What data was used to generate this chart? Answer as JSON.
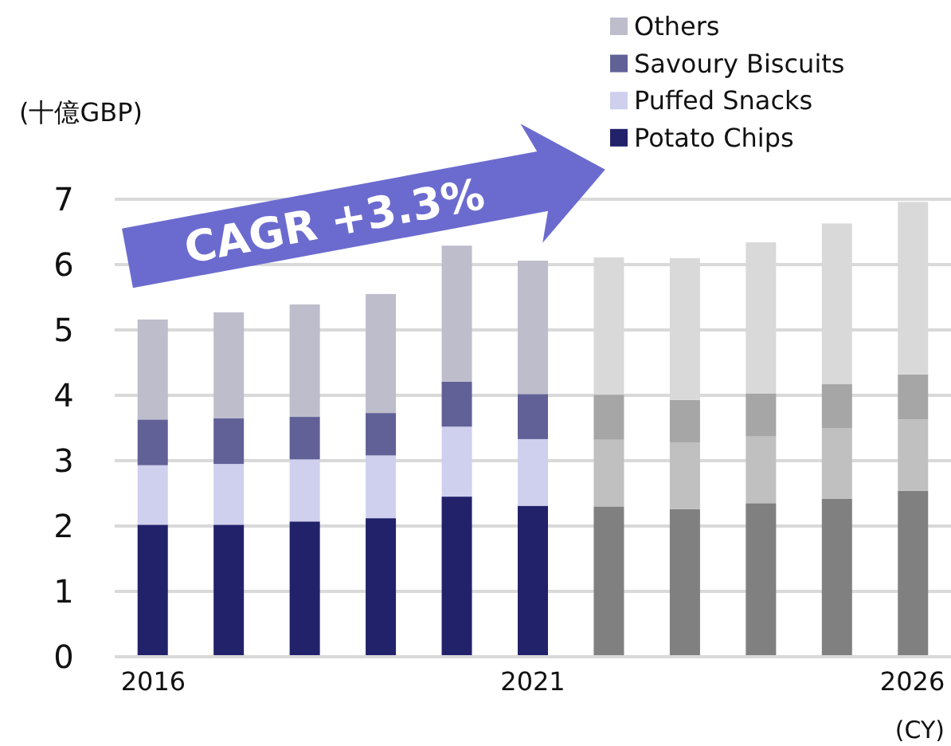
{
  "chart_data": {
    "type": "bar",
    "stacked": true,
    "ylabel": "(十億GBP)",
    "xlabel": "(CY)",
    "categories": [
      "2016",
      null,
      null,
      null,
      null,
      "2021",
      null,
      null,
      null,
      null,
      "2026"
    ],
    "series": [
      {
        "name": "Potato Chips",
        "color": "#22226b",
        "colors": [
          "#22226b",
          "#22226b",
          "#22226b",
          "#22226b",
          "#22226b",
          "#22226b",
          "#808080",
          "#808080",
          "#808080",
          "#808080",
          "#808080"
        ],
        "values": [
          2.02,
          2.02,
          2.07,
          2.12,
          2.45,
          2.31,
          2.3,
          2.26,
          2.35,
          2.42,
          2.54
        ]
      },
      {
        "name": "Puffed Snacks",
        "color": "#cfd0ee",
        "colors": [
          "#cfd0ee",
          "#cfd0ee",
          "#cfd0ee",
          "#cfd0ee",
          "#cfd0ee",
          "#cfd0ee",
          "#c0c0c0",
          "#c0c0c0",
          "#c0c0c0",
          "#c0c0c0",
          "#c0c0c0"
        ],
        "values": [
          0.91,
          0.93,
          0.95,
          0.96,
          1.07,
          1.02,
          1.02,
          1.02,
          1.02,
          1.08,
          1.09
        ]
      },
      {
        "name": "Savoury Biscuits",
        "color": "#616198",
        "colors": [
          "#616198",
          "#616198",
          "#616198",
          "#616198",
          "#616198",
          "#616198",
          "#a6a6a6",
          "#a6a6a6",
          "#a6a6a6",
          "#a6a6a6",
          "#a6a6a6"
        ],
        "values": [
          0.7,
          0.7,
          0.65,
          0.65,
          0.69,
          0.69,
          0.69,
          0.65,
          0.66,
          0.67,
          0.69
        ]
      },
      {
        "name": "Others",
        "color": "#bdbdcc",
        "colors": [
          "#bdbdcc",
          "#bdbdcc",
          "#bdbdcc",
          "#bdbdcc",
          "#bdbdcc",
          "#bdbdcc",
          "#d9d9d9",
          "#d9d9d9",
          "#d9d9d9",
          "#d9d9d9",
          "#d9d9d9"
        ],
        "values": [
          1.53,
          1.62,
          1.72,
          1.82,
          2.08,
          2.04,
          2.1,
          2.17,
          2.31,
          2.46,
          2.64
        ]
      }
    ],
    "ylim": [
      0,
      7
    ],
    "yticks": [
      0,
      1,
      2,
      3,
      4,
      5,
      6,
      7
    ],
    "grid": "y",
    "legend": "top right",
    "annotations": [
      "CAGR +3.3%"
    ]
  }
}
